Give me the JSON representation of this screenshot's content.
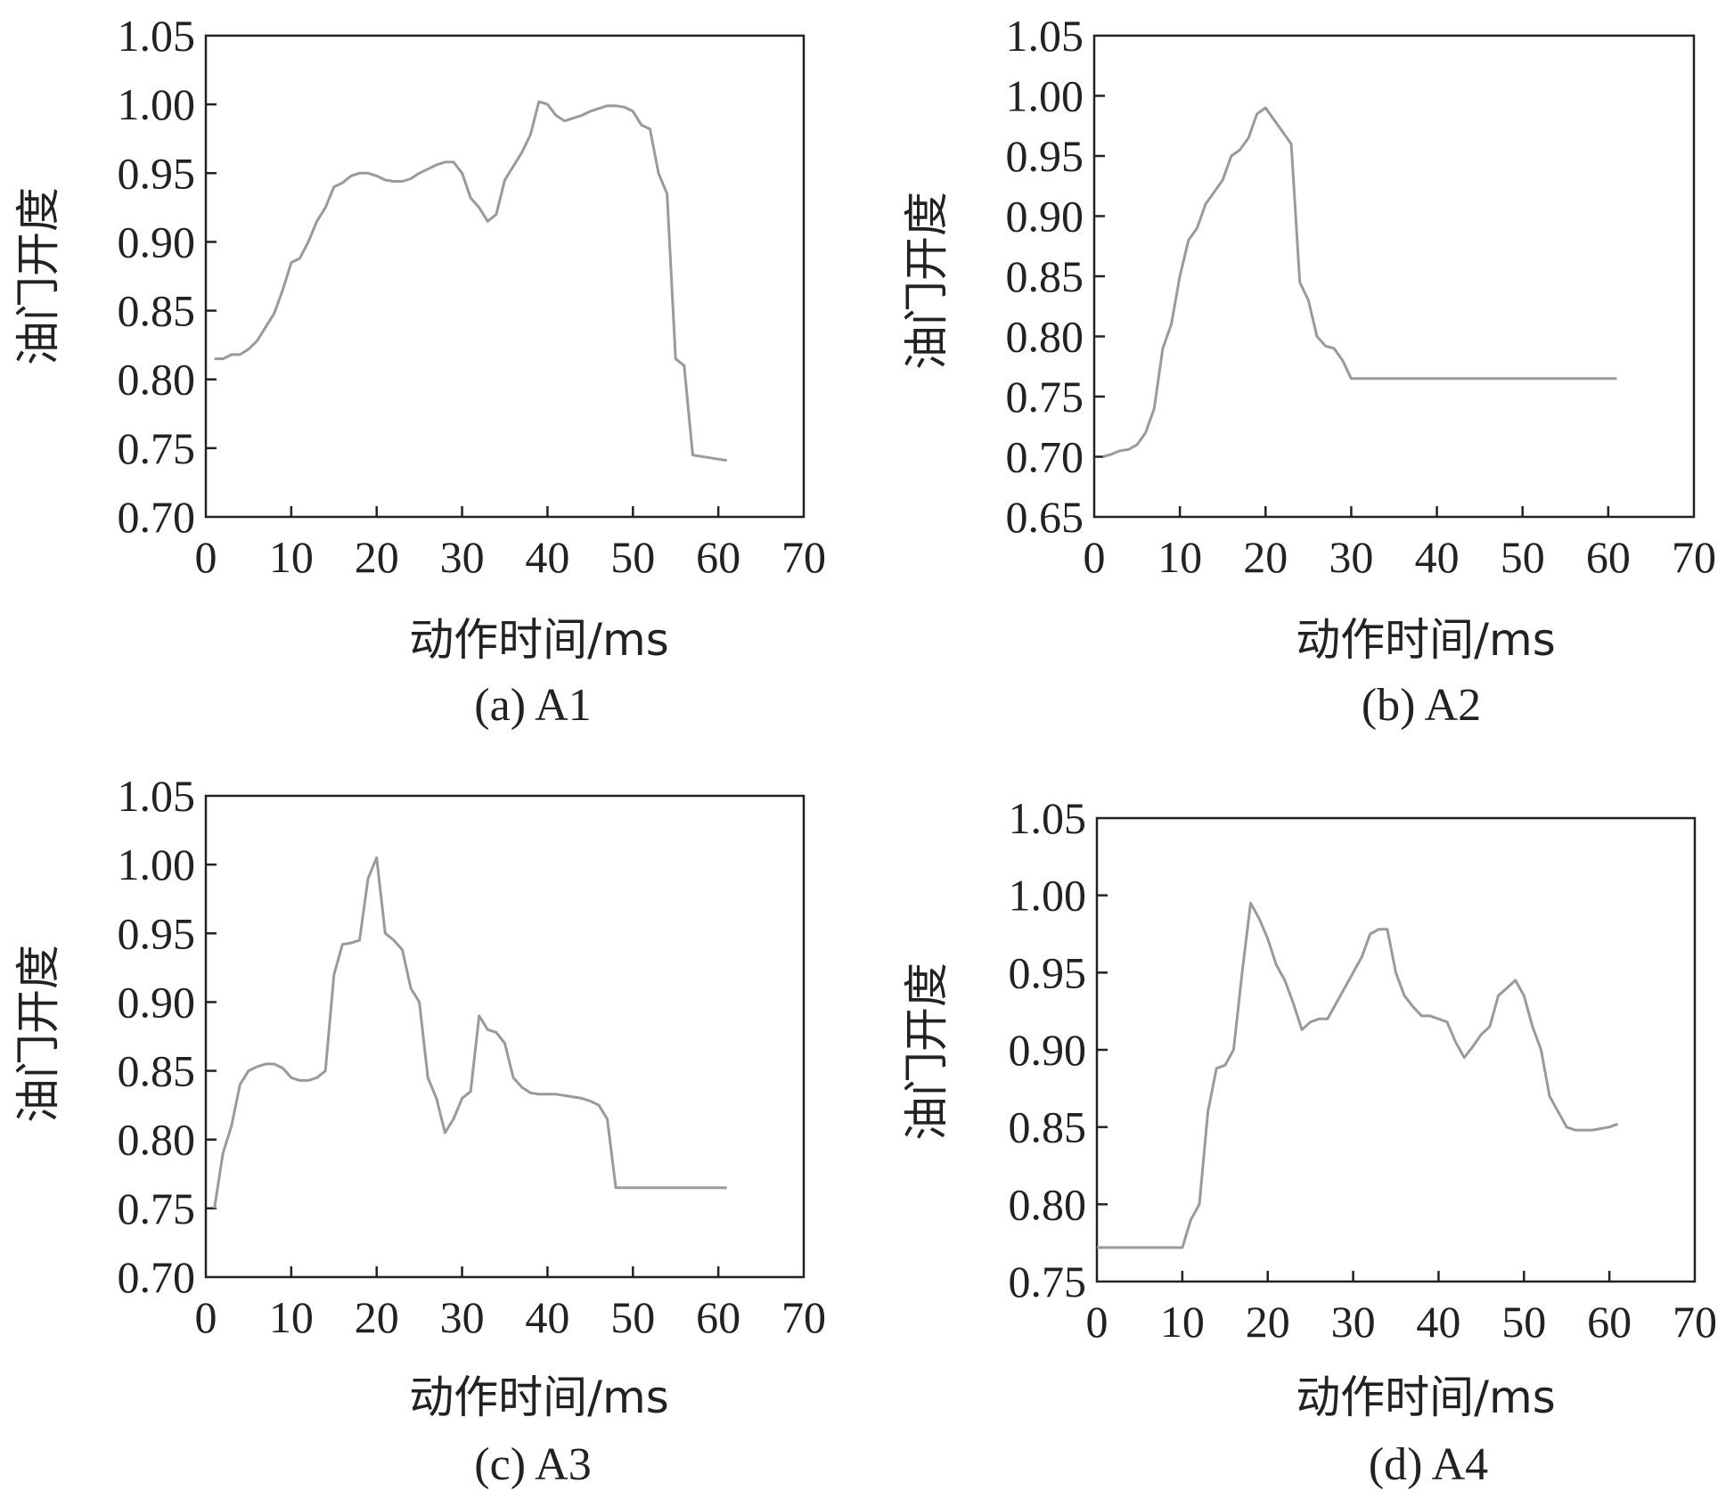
{
  "chart_data": [
    {
      "type": "line",
      "caption": "(a) A1",
      "xlabel": "动作时间/ms",
      "ylabel": "油门开度",
      "xlim": [
        0,
        70
      ],
      "ylim": [
        0.7,
        1.05
      ],
      "xticks": [
        "0",
        "10",
        "20",
        "30",
        "40",
        "50",
        "60",
        "70"
      ],
      "yticks": [
        "0.70",
        "0.75",
        "0.80",
        "0.85",
        "0.90",
        "0.95",
        "1.00",
        "1.05"
      ],
      "series": [
        {
          "x": [
            1,
            2,
            3,
            4,
            5,
            6,
            7,
            8,
            9,
            10,
            11,
            12,
            13,
            14,
            15,
            16,
            17,
            18,
            19,
            20,
            21,
            22,
            23,
            24,
            25,
            26,
            27,
            28,
            29,
            30,
            31,
            32,
            33,
            34,
            35,
            36,
            37,
            38,
            39,
            40,
            41,
            42,
            43,
            44,
            45,
            46,
            47,
            48,
            49,
            50,
            51,
            52,
            53,
            54,
            55,
            56,
            57,
            58,
            59,
            60,
            61
          ],
          "y": [
            0.815,
            0.815,
            0.818,
            0.818,
            0.822,
            0.828,
            0.838,
            0.848,
            0.865,
            0.885,
            0.888,
            0.9,
            0.915,
            0.925,
            0.94,
            0.943,
            0.948,
            0.95,
            0.95,
            0.948,
            0.945,
            0.944,
            0.944,
            0.946,
            0.95,
            0.953,
            0.956,
            0.958,
            0.958,
            0.95,
            0.932,
            0.925,
            0.915,
            0.92,
            0.945,
            0.955,
            0.965,
            0.978,
            1.002,
            1.0,
            0.992,
            0.988,
            0.99,
            0.992,
            0.995,
            0.997,
            0.999,
            0.999,
            0.998,
            0.995,
            0.985,
            0.982,
            0.95,
            0.935,
            0.815,
            0.81,
            0.745,
            0.744,
            0.743,
            0.742,
            0.741
          ]
        }
      ]
    },
    {
      "type": "line",
      "caption": "(b) A2",
      "xlabel": "动作时间/ms",
      "ylabel": "油门开度",
      "xlim": [
        0,
        70
      ],
      "ylim": [
        0.65,
        1.05
      ],
      "xticks": [
        "0",
        "10",
        "20",
        "30",
        "40",
        "50",
        "60",
        "70"
      ],
      "yticks": [
        "0.65",
        "0.70",
        "0.75",
        "0.80",
        "0.85",
        "0.90",
        "0.95",
        "1.00",
        "1.05"
      ],
      "series": [
        {
          "x": [
            1,
            2,
            3,
            4,
            5,
            6,
            7,
            8,
            9,
            10,
            11,
            12,
            13,
            14,
            15,
            16,
            17,
            18,
            19,
            20,
            21,
            22,
            23,
            24,
            25,
            26,
            27,
            28,
            29,
            30,
            61
          ],
          "y": [
            0.7,
            0.702,
            0.705,
            0.706,
            0.71,
            0.72,
            0.74,
            0.79,
            0.81,
            0.85,
            0.88,
            0.89,
            0.91,
            0.92,
            0.93,
            0.95,
            0.955,
            0.965,
            0.985,
            0.99,
            0.98,
            0.97,
            0.96,
            0.845,
            0.83,
            0.8,
            0.792,
            0.79,
            0.78,
            0.765,
            0.765
          ]
        }
      ]
    },
    {
      "type": "line",
      "caption": "(c) A3",
      "xlabel": "动作时间/ms",
      "ylabel": "油门开度",
      "xlim": [
        0,
        70
      ],
      "ylim": [
        0.7,
        1.05
      ],
      "xticks": [
        "0",
        "10",
        "20",
        "30",
        "40",
        "50",
        "60",
        "70"
      ],
      "yticks": [
        "0.70",
        "0.75",
        "0.80",
        "0.85",
        "0.90",
        "0.95",
        "1.00",
        "1.05"
      ],
      "series": [
        {
          "x": [
            1,
            2,
            3,
            4,
            5,
            6,
            7,
            8,
            9,
            10,
            11,
            12,
            13,
            14,
            15,
            16,
            17,
            18,
            19,
            20,
            21,
            22,
            23,
            24,
            25,
            26,
            27,
            28,
            29,
            30,
            31,
            32,
            33,
            34,
            35,
            36,
            37,
            38,
            39,
            40,
            41,
            42,
            43,
            44,
            45,
            46,
            47,
            48,
            61
          ],
          "y": [
            0.75,
            0.79,
            0.81,
            0.84,
            0.85,
            0.853,
            0.855,
            0.855,
            0.852,
            0.845,
            0.843,
            0.843,
            0.845,
            0.85,
            0.92,
            0.942,
            0.943,
            0.945,
            0.99,
            1.005,
            0.95,
            0.945,
            0.938,
            0.91,
            0.9,
            0.845,
            0.83,
            0.805,
            0.815,
            0.83,
            0.835,
            0.89,
            0.88,
            0.878,
            0.87,
            0.845,
            0.838,
            0.834,
            0.833,
            0.833,
            0.833,
            0.832,
            0.831,
            0.83,
            0.828,
            0.825,
            0.815,
            0.765,
            0.765
          ]
        }
      ]
    },
    {
      "type": "line",
      "caption": "(d) A4",
      "xlabel": "动作时间/ms",
      "ylabel": "油门开度",
      "xlim": [
        0,
        70
      ],
      "ylim": [
        0.75,
        1.05
      ],
      "xticks": [
        "0",
        "10",
        "20",
        "30",
        "40",
        "50",
        "60",
        "70"
      ],
      "yticks": [
        "0.75",
        "0.80",
        "0.85",
        "0.90",
        "0.95",
        "1.00",
        "1.05"
      ],
      "series": [
        {
          "x": [
            0,
            10,
            11,
            12,
            13,
            14,
            15,
            16,
            17,
            18,
            19,
            20,
            21,
            22,
            23,
            24,
            25,
            26,
            27,
            28,
            29,
            30,
            31,
            32,
            33,
            34,
            35,
            36,
            37,
            38,
            39,
            40,
            41,
            42,
            43,
            44,
            45,
            46,
            47,
            48,
            49,
            50,
            51,
            52,
            53,
            54,
            55,
            56,
            57,
            58,
            59,
            60,
            61
          ],
          "y": [
            0.772,
            0.772,
            0.79,
            0.8,
            0.86,
            0.888,
            0.89,
            0.9,
            0.95,
            0.995,
            0.985,
            0.972,
            0.955,
            0.945,
            0.93,
            0.913,
            0.918,
            0.92,
            0.92,
            0.93,
            0.94,
            0.95,
            0.96,
            0.975,
            0.978,
            0.978,
            0.95,
            0.935,
            0.928,
            0.922,
            0.922,
            0.92,
            0.918,
            0.905,
            0.895,
            0.902,
            0.91,
            0.915,
            0.935,
            0.94,
            0.945,
            0.935,
            0.915,
            0.9,
            0.87,
            0.86,
            0.85,
            0.848,
            0.848,
            0.848,
            0.849,
            0.85,
            0.852
          ]
        }
      ]
    }
  ]
}
